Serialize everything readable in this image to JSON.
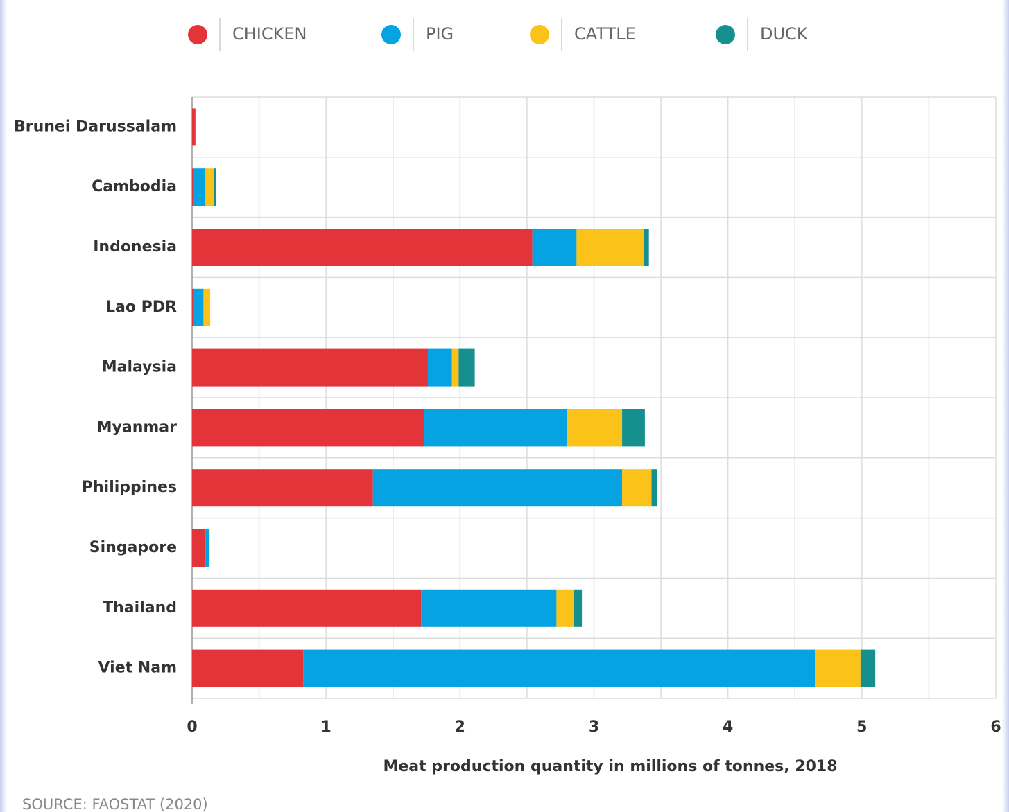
{
  "chart_data": {
    "type": "stacked_barh",
    "categories": [
      "Brunei Darussalam",
      "Cambodia",
      "Indonesia",
      "Lao PDR",
      "Malaysia",
      "Myanmar",
      "Philippines",
      "Singapore",
      "Thailand",
      "Viet Nam"
    ],
    "series": [
      {
        "name": "CHICKEN",
        "color": "#e3343a",
        "values": [
          0.025,
          0.01,
          2.54,
          0.015,
          1.76,
          1.73,
          1.35,
          0.1,
          1.71,
          0.83
        ]
      },
      {
        "name": "PIG",
        "color": "#06a3e2",
        "values": [
          0,
          0.09,
          0.33,
          0.07,
          0.18,
          1.07,
          1.86,
          0.03,
          1.01,
          3.82
        ]
      },
      {
        "name": "CATTLE",
        "color": "#fbc21a",
        "values": [
          0,
          0.06,
          0.5,
          0.05,
          0.05,
          0.41,
          0.22,
          0,
          0.13,
          0.34
        ]
      },
      {
        "name": "DUCK",
        "color": "#15908f",
        "values": [
          0,
          0.02,
          0.04,
          0,
          0.12,
          0.17,
          0.04,
          0,
          0.06,
          0.11
        ]
      }
    ],
    "xlim": [
      0,
      6
    ],
    "xticks": [
      0,
      1,
      2,
      3,
      4,
      5,
      6
    ],
    "minor_xticks": [
      0.5,
      1.5,
      2.5,
      3.5,
      4.5,
      5.5
    ],
    "grid": true,
    "xlabel": "Meat production quantity in millions of tonnes, 2018",
    "source": "SOURCE: FAOSTAT (2020)"
  }
}
